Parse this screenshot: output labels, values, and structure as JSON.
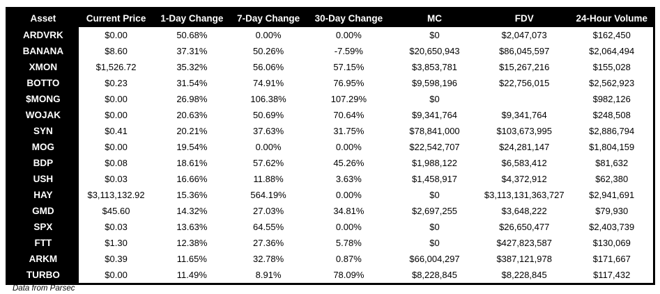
{
  "chart_data": {
    "type": "table",
    "title": "",
    "columns": [
      "Asset",
      "Current Price",
      "1-Day Change",
      "7-Day Change",
      "30-Day Change",
      "MC",
      "FDV",
      "24-Hour Volume"
    ],
    "rows": [
      {
        "asset": "ARDVRK",
        "cells": [
          "$0.00",
          "50.68%",
          "0.00%",
          "0.00%",
          "$0",
          "$2,047,073",
          "$162,450"
        ]
      },
      {
        "asset": "BANANA",
        "cells": [
          "$8.60",
          "37.31%",
          "50.26%",
          "-7.59%",
          "$20,650,943",
          "$86,045,597",
          "$2,064,494"
        ]
      },
      {
        "asset": "XMON",
        "cells": [
          "$1,526.72",
          "35.32%",
          "56.06%",
          "57.15%",
          "$3,853,781",
          "$15,267,216",
          "$155,028"
        ]
      },
      {
        "asset": "BOTTO",
        "cells": [
          "$0.23",
          "31.54%",
          "74.91%",
          "76.95%",
          "$9,598,196",
          "$22,756,015",
          "$2,562,923"
        ]
      },
      {
        "asset": "$MONG",
        "cells": [
          "$0.00",
          "26.98%",
          "106.38%",
          "107.29%",
          "$0",
          "",
          "$982,126"
        ]
      },
      {
        "asset": "WOJAK",
        "cells": [
          "$0.00",
          "20.63%",
          "50.69%",
          "70.64%",
          "$9,341,764",
          "$9,341,764",
          "$248,508"
        ]
      },
      {
        "asset": "SYN",
        "cells": [
          "$0.41",
          "20.21%",
          "37.63%",
          "31.75%",
          "$78,841,000",
          "$103,673,995",
          "$2,886,794"
        ]
      },
      {
        "asset": "MOG",
        "cells": [
          "$0.00",
          "19.54%",
          "0.00%",
          "0.00%",
          "$22,542,707",
          "$24,281,147",
          "$1,804,159"
        ]
      },
      {
        "asset": "BDP",
        "cells": [
          "$0.08",
          "18.61%",
          "57.62%",
          "45.26%",
          "$1,988,122",
          "$6,583,412",
          "$81,632"
        ]
      },
      {
        "asset": "USH",
        "cells": [
          "$0.03",
          "16.66%",
          "11.88%",
          "3.63%",
          "$1,458,917",
          "$4,372,912",
          "$62,380"
        ]
      },
      {
        "asset": "HAY",
        "cells": [
          "$3,113,132.92",
          "15.36%",
          "564.19%",
          "0.00%",
          "$0",
          "$3,113,131,363,727",
          "$2,941,691"
        ]
      },
      {
        "asset": "GMD",
        "cells": [
          "$45.60",
          "14.32%",
          "27.03%",
          "34.81%",
          "$2,697,255",
          "$3,648,222",
          "$79,930"
        ]
      },
      {
        "asset": "SPX",
        "cells": [
          "$0.03",
          "13.63%",
          "64.55%",
          "0.00%",
          "$0",
          "$26,650,477",
          "$2,403,739"
        ]
      },
      {
        "asset": "FTT",
        "cells": [
          "$1.30",
          "12.38%",
          "27.36%",
          "5.78%",
          "$0",
          "$427,823,587",
          "$130,069"
        ]
      },
      {
        "asset": "ARKM",
        "cells": [
          "$0.39",
          "11.65%",
          "32.78%",
          "0.87%",
          "$66,004,297",
          "$387,121,978",
          "$171,667"
        ]
      },
      {
        "asset": "TURBO",
        "cells": [
          "$0.00",
          "11.49%",
          "8.91%",
          "78.09%",
          "$8,228,845",
          "$8,228,845",
          "$117,432"
        ]
      }
    ]
  },
  "footer": {
    "source_note": "Data from Parsec"
  },
  "colors": {
    "header_bg": "#000000",
    "header_text": "#ffffff",
    "cell_bg": "#ffffff",
    "cell_text": "#000000"
  }
}
